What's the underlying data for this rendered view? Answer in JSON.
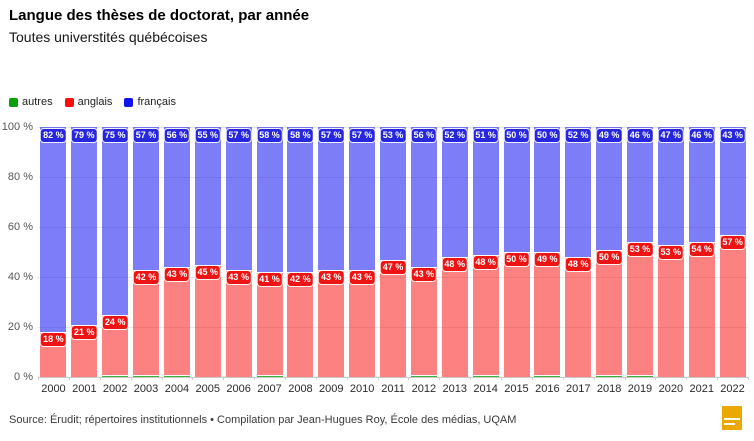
{
  "header": {
    "title": "Langue des thèses de doctorat, par année",
    "subtitle": "Toutes universtités québécoises"
  },
  "legend": {
    "items": [
      {
        "label": "autres",
        "color": "#0aa00a"
      },
      {
        "label": "anglais",
        "color": "#fa0f0f"
      },
      {
        "label": "français",
        "color": "#1212f0"
      }
    ]
  },
  "chart_data": {
    "type": "bar",
    "stacked": true,
    "title": "Langue des thèses de doctorat, par année",
    "subtitle": "Toutes universtités québécoises",
    "xlabel": "",
    "ylabel": "",
    "unit": "%",
    "ylim": [
      0,
      100
    ],
    "grid": true,
    "legend_position": "top-left",
    "labeled_series": [
      "français",
      "anglais"
    ],
    "categories": [
      "2000",
      "2001",
      "2002",
      "2003",
      "2004",
      "2005",
      "2006",
      "2007",
      "2008",
      "2009",
      "2010",
      "2011",
      "2012",
      "2013",
      "2014",
      "2015",
      "2016",
      "2017",
      "2018",
      "2019",
      "2020",
      "2021",
      "2022"
    ],
    "series": [
      {
        "name": "français",
        "color": "#1212f0",
        "label_bg": "#2727de",
        "fill_opacity": 0.55,
        "values": [
          82,
          79,
          75,
          57,
          56,
          55,
          57,
          58,
          58,
          57,
          57,
          53,
          56,
          52,
          51,
          50,
          50,
          52,
          49,
          46,
          47,
          46,
          43
        ]
      },
      {
        "name": "anglais",
        "color": "#fa0f0f",
        "label_bg": "#ee1414",
        "fill_opacity": 0.52,
        "values": [
          18,
          21,
          24,
          42,
          43,
          45,
          43,
          41,
          42,
          43,
          43,
          47,
          43,
          48,
          48,
          50,
          49,
          48,
          50,
          53,
          53,
          54,
          57
        ]
      },
      {
        "name": "autres",
        "color": "#0aa00a",
        "label_bg": "#0aa00a",
        "fill_opacity": 0.8,
        "values": [
          0,
          0,
          1,
          1,
          1,
          0,
          0,
          1,
          0,
          0,
          0,
          0,
          1,
          0,
          1,
          0,
          1,
          0,
          1,
          1,
          0,
          0,
          0
        ]
      }
    ],
    "yticks": [
      {
        "label": "0 %",
        "value": 0
      },
      {
        "label": "20 %",
        "value": 20
      },
      {
        "label": "40 %",
        "value": 40
      },
      {
        "label": "60 %",
        "value": 60
      },
      {
        "label": "80 %",
        "value": 80
      },
      {
        "label": "100 %",
        "value": 100
      }
    ]
  },
  "footer": {
    "source": "Source: Érudit; répertoires institutionnels • Compilation par Jean-Hugues Roy, École des médias, UQAM"
  },
  "badge": {
    "color": "#eaa800"
  }
}
